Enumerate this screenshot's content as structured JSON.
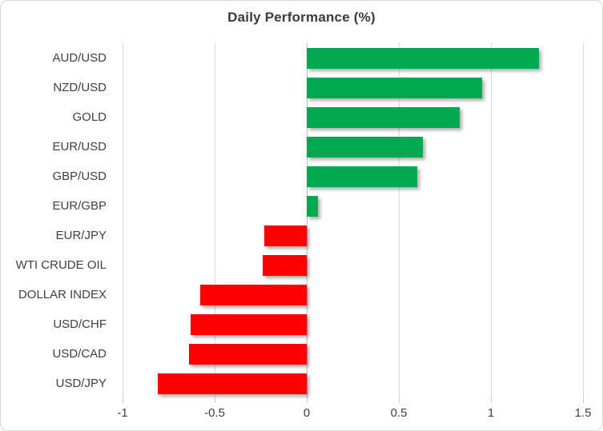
{
  "chart_data": {
    "type": "bar",
    "orientation": "horizontal",
    "title": "Daily Performance (%)",
    "categories": [
      "AUD/USD",
      "NZD/USD",
      "GOLD",
      "EUR/USD",
      "GBP/USD",
      "EUR/GBP",
      "EUR/JPY",
      "WTI CRUDE OIL",
      "DOLLAR INDEX",
      "USD/CHF",
      "USD/CAD",
      "USD/JPY"
    ],
    "values": [
      1.26,
      0.95,
      0.83,
      0.63,
      0.6,
      0.06,
      -0.23,
      -0.24,
      -0.58,
      -0.63,
      -0.64,
      -0.81
    ],
    "xlim": [
      -1,
      1.5
    ],
    "xticks": [
      -1,
      -0.5,
      0,
      0.5,
      1,
      1.5
    ],
    "xtick_labels": [
      "-1",
      "-0.5",
      "0",
      "0.5",
      "1",
      "1.5"
    ],
    "grid": true,
    "legend": "none",
    "colors": {
      "positive": "#00a94f",
      "negative": "#fe0000",
      "gridline": "#d9d9d9",
      "zero_axis_line": "#bdbdbd",
      "tick_mark": "#c9c9c9",
      "text": "#3f3f3f",
      "title": "#3b3b3b"
    }
  }
}
